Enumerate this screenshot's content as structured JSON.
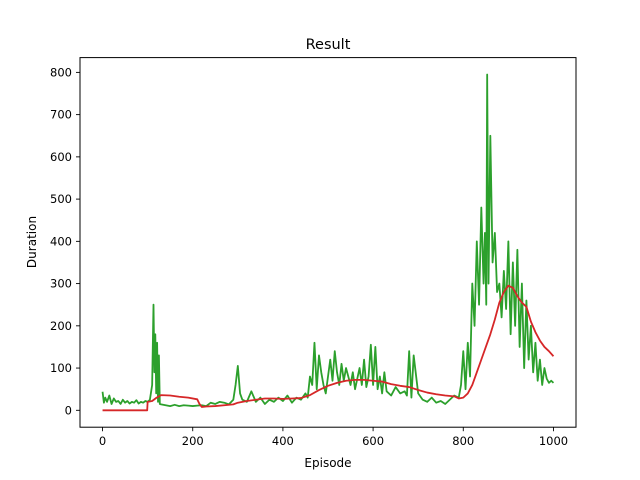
{
  "chart_data": {
    "type": "line",
    "title": "Result",
    "xlabel": "Episode",
    "ylabel": "Duration",
    "xlim": [
      -50,
      1050
    ],
    "ylim": [
      -40,
      835
    ],
    "xticks": [
      0,
      200,
      400,
      600,
      800,
      1000
    ],
    "yticks": [
      0,
      100,
      200,
      300,
      400,
      500,
      600,
      700,
      800
    ],
    "grid": false,
    "legend": "none",
    "series": [
      {
        "color": "#2ca02c",
        "description_points": "episode duration (raw, noisy)",
        "x": [
          0,
          3,
          6,
          10,
          15,
          20,
          25,
          30,
          35,
          40,
          45,
          50,
          55,
          60,
          65,
          70,
          75,
          80,
          85,
          90,
          95,
          100,
          105,
          110,
          113,
          115,
          117,
          119,
          121,
          123,
          125,
          127,
          130,
          140,
          150,
          160,
          170,
          180,
          190,
          200,
          210,
          220,
          230,
          240,
          250,
          260,
          270,
          280,
          290,
          295,
          300,
          305,
          310,
          320,
          330,
          340,
          350,
          360,
          370,
          380,
          390,
          400,
          410,
          420,
          430,
          440,
          450,
          455,
          460,
          465,
          470,
          475,
          480,
          485,
          490,
          495,
          500,
          505,
          510,
          515,
          520,
          525,
          530,
          535,
          540,
          545,
          550,
          555,
          560,
          565,
          570,
          575,
          580,
          585,
          590,
          595,
          600,
          605,
          610,
          615,
          620,
          625,
          630,
          640,
          650,
          660,
          670,
          675,
          680,
          685,
          690,
          700,
          710,
          720,
          730,
          740,
          750,
          760,
          770,
          780,
          790,
          795,
          800,
          805,
          810,
          815,
          820,
          825,
          830,
          835,
          840,
          845,
          848,
          851,
          853,
          856,
          860,
          865,
          870,
          875,
          880,
          885,
          890,
          895,
          900,
          905,
          910,
          915,
          920,
          925,
          930,
          935,
          940,
          945,
          950,
          955,
          960,
          965,
          970,
          975,
          980,
          985,
          990,
          995,
          1000
        ],
        "values": [
          44,
          18,
          30,
          20,
          35,
          15,
          28,
          20,
          22,
          15,
          25,
          18,
          22,
          16,
          20,
          18,
          24,
          16,
          20,
          18,
          22,
          20,
          25,
          60,
          250,
          90,
          180,
          40,
          160,
          20,
          130,
          15,
          14,
          12,
          10,
          13,
          10,
          12,
          11,
          10,
          11,
          12,
          10,
          18,
          15,
          20,
          18,
          14,
          25,
          60,
          105,
          40,
          25,
          20,
          45,
          20,
          30,
          15,
          25,
          20,
          30,
          22,
          35,
          18,
          30,
          25,
          40,
          30,
          80,
          60,
          160,
          50,
          130,
          90,
          60,
          40,
          80,
          120,
          70,
          140,
          90,
          60,
          110,
          70,
          100,
          80,
          60,
          90,
          50,
          75,
          100,
          60,
          120,
          55,
          80,
          155,
          60,
          150,
          50,
          80,
          40,
          90,
          45,
          35,
          55,
          40,
          45,
          35,
          140,
          30,
          130,
          40,
          25,
          20,
          30,
          18,
          22,
          15,
          25,
          35,
          30,
          60,
          140,
          50,
          160,
          80,
          300,
          200,
          400,
          250,
          480,
          300,
          420,
          250,
          795,
          300,
          650,
          350,
          420,
          280,
          300,
          220,
          330,
          240,
          400,
          180,
          350,
          200,
          380,
          150,
          300,
          100,
          260,
          120,
          200,
          90,
          160,
          70,
          120,
          60,
          100,
          75,
          65,
          70,
          65
        ]
      },
      {
        "color": "#d62728",
        "description_points": "100-episode moving average",
        "x": [
          0,
          20,
          40,
          60,
          80,
          99,
          100,
          110,
          120,
          130,
          150,
          170,
          190,
          210,
          215,
          220,
          230,
          250,
          270,
          290,
          300,
          320,
          340,
          360,
          380,
          400,
          420,
          440,
          460,
          480,
          500,
          520,
          540,
          560,
          580,
          600,
          620,
          640,
          660,
          680,
          700,
          720,
          740,
          760,
          780,
          790,
          800,
          810,
          820,
          830,
          840,
          850,
          860,
          870,
          880,
          890,
          900,
          910,
          920,
          930,
          940,
          950,
          960,
          970,
          980,
          990,
          1000
        ],
        "values": [
          0,
          0,
          0,
          0,
          0,
          0,
          20,
          22,
          30,
          36,
          35,
          32,
          30,
          26,
          15,
          8,
          9,
          10,
          12,
          14,
          18,
          22,
          25,
          28,
          28,
          27,
          28,
          29,
          36,
          48,
          58,
          65,
          70,
          72,
          72,
          70,
          68,
          62,
          58,
          55,
          48,
          42,
          38,
          35,
          33,
          28,
          30,
          40,
          60,
          90,
          120,
          150,
          180,
          215,
          255,
          280,
          295,
          290,
          270,
          255,
          245,
          210,
          185,
          165,
          150,
          140,
          128
        ]
      }
    ]
  }
}
